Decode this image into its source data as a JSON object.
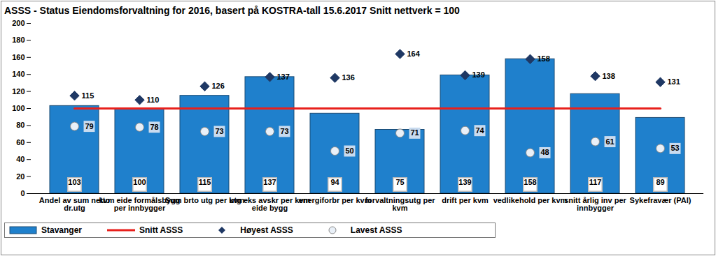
{
  "chart_data": {
    "type": "bar",
    "title": "ASSS - Status Eiendomsforvaltning  for 2016, basert på KOSTRA-tall  15.6.2017  Snitt nettverk = 100",
    "categories": [
      "Andel av sum netto dr.utg",
      "kvm eide formålsbygg per innbygger",
      "Sum brto utg per kvm",
      "utg eks avskr per kvm eide bygg",
      "energiforbr per kvm",
      "forvaltningsutg per kvm",
      "drift per kvm",
      "vedlikehold per kvm",
      "snitt årlig inv per innbygger",
      "Sykefravær (PAI)"
    ],
    "series": [
      {
        "name": "Stavanger",
        "type": "bar",
        "color": "#1f80cc",
        "values": [
          103,
          100,
          115,
          137,
          94,
          75,
          139,
          158,
          117,
          89
        ],
        "data_labels": true
      },
      {
        "name": "Snitt ASSS",
        "type": "line",
        "color": "#e8201c",
        "values": [
          100,
          100,
          100,
          100,
          100,
          100,
          100,
          100,
          100,
          100
        ],
        "data_labels": false
      },
      {
        "name": "Høyest ASSS",
        "type": "scatter",
        "marker": "diamond",
        "color": "#1f3864",
        "values": [
          115,
          110,
          126,
          137,
          136,
          164,
          139,
          158,
          138,
          131
        ],
        "data_labels": true
      },
      {
        "name": "Lavest ASSS",
        "type": "scatter",
        "marker": "circle",
        "color": "#e9f0f8",
        "values": [
          79,
          78,
          73,
          73,
          50,
          71,
          74,
          48,
          61,
          53
        ],
        "data_labels": true
      }
    ],
    "ylim": [
      0,
      200
    ],
    "yticks": [
      0,
      20,
      40,
      60,
      80,
      100,
      120,
      140,
      160,
      180,
      200
    ],
    "grid": false,
    "legend": "bottom"
  }
}
